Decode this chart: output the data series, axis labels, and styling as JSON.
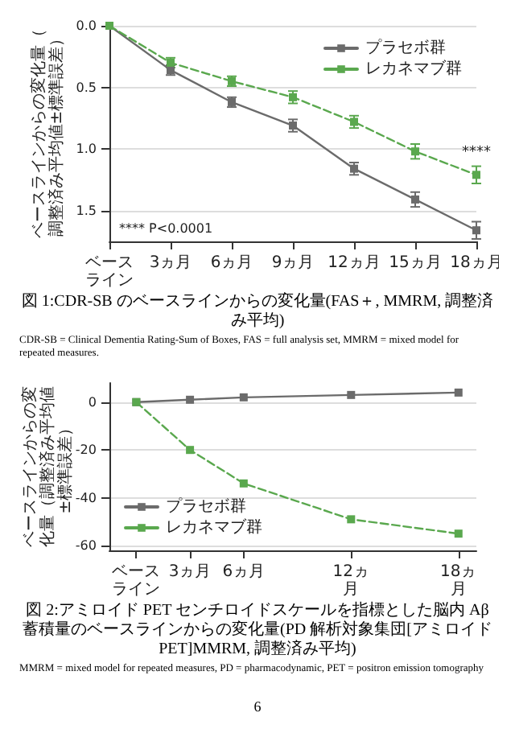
{
  "chart_data": [
    {
      "type": "line",
      "title": "図 1:CDR-SB のベースラインからの変化量(FAS＋, MMRM, 調整済み平均)",
      "subtitle": "CDR-SB = Clinical Dementia Rating-Sum of Boxes, FAS = full analysis set, MMRM = mixed model for repeated measures.",
      "ylabel": "ベースラインからの変化量（調整済み平均値±標準誤差）",
      "categories": [
        "ベースライン",
        "3ヵ月",
        "6ヵ月",
        "9ヵ月",
        "12ヵ月",
        "15ヵ月",
        "18ヵ月"
      ],
      "ylim": [
        1.75,
        0
      ],
      "yticks": [
        {
          "value": 0,
          "label": "0.0"
        },
        {
          "value": 0.5,
          "label": "0.5"
        },
        {
          "value": 1,
          "label": "1.0"
        },
        {
          "value": 1.5,
          "label": "1.5"
        }
      ],
      "grid": "y",
      "legend": "top right",
      "marker": "square",
      "series": [
        {
          "name": "プラセボ群",
          "color": "#6b6b6b",
          "line_style": "solid",
          "values": [
            0,
            0.36,
            0.62,
            0.81,
            1.16,
            1.41,
            1.66
          ],
          "errors": [
            null,
            0.04,
            0.04,
            0.05,
            0.05,
            0.06,
            0.07
          ]
        },
        {
          "name": "レカネマブ群",
          "color": "#5aa84e",
          "line_style": "dashed",
          "values": [
            0,
            0.3,
            0.45,
            0.58,
            0.78,
            1.02,
            1.21
          ],
          "errors": [
            null,
            0.04,
            0.04,
            0.05,
            0.05,
            0.06,
            0.07
          ]
        }
      ],
      "annotations": [
        {
          "text": "****",
          "x": "18ヵ月",
          "y": 1.21
        },
        "**** P<0.0001"
      ]
    },
    {
      "type": "line",
      "title": "図 2:アミロイド PET センチロイドスケールを指標とした脳内 Aβ 蓄積量のベースラインからの変化量(PD 解析対象集団[アミロイド PET]MMRM, 調整済み平均)",
      "subtitle": "MMRM = mixed model for repeated measures, PD = pharmacodynamic, PET = positron emission tomography",
      "ylabel": "ベースラインからの変化量（調整済み平均値±標準誤差）",
      "x": [
        0,
        3,
        6,
        12,
        18
      ],
      "xlim": [
        -1.5,
        19
      ],
      "xticks": [
        {
          "value": 0,
          "label": "ベースライン"
        },
        {
          "value": 3,
          "label": "3ヵ月"
        },
        {
          "value": 6,
          "label": "6ヵ月"
        },
        {
          "value": 12,
          "label": "12ヵ月"
        },
        {
          "value": 18,
          "label": "18ヵ月"
        }
      ],
      "ylim": [
        -62,
        8
      ],
      "yticks": [
        0,
        -20,
        -40,
        -60
      ],
      "grid": "y",
      "legend": "bottom left",
      "marker": "square",
      "series": [
        {
          "name": "プラセボ群",
          "color": "#6b6b6b",
          "line_style": "solid",
          "values": [
            0,
            1,
            2,
            3,
            4
          ]
        },
        {
          "name": "レカネマブ群",
          "color": "#5aa84e",
          "line_style": "dashed",
          "values": [
            0,
            -20,
            -34,
            -49,
            -55
          ]
        }
      ]
    },
    {
      "type": "other",
      "annotations": [
        "6"
      ]
    }
  ]
}
